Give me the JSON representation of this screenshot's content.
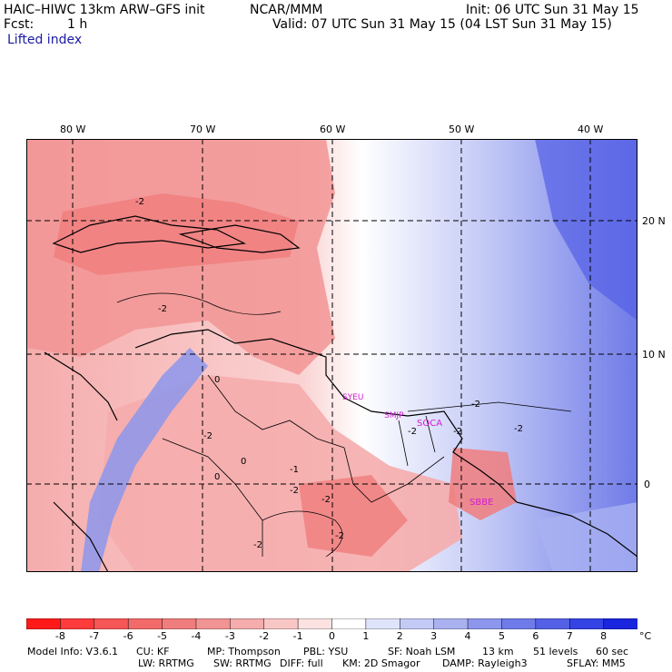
{
  "header": {
    "model_title": "HAIC–HIWC 13km ARW–GFS init",
    "org": "NCAR/MMM",
    "init": "Init: 06 UTC Sun 31 May 15",
    "fcst_label": "Fcst:",
    "fcst_value": "1 h",
    "valid": "Valid: 07 UTC Sun 31 May 15 (04 LST Sun 31 May 15)",
    "field": "Lifted index"
  },
  "axes": {
    "lon_labels": [
      "80 W",
      "70 W",
      "60 W",
      "50 W",
      "40 W"
    ],
    "lat_labels": [
      "20 N",
      "10 N",
      "0"
    ]
  },
  "stations": [
    "SYEU",
    "SMJP",
    "SOCA",
    "SBBE"
  ],
  "contour_labels": [
    "-2",
    "-2",
    "-2",
    "-2",
    "-2",
    "-2",
    "-2",
    "-2",
    "-2",
    "-2",
    "-2",
    "-1",
    "0",
    "0",
    "0"
  ],
  "colorbar": {
    "ticks": [
      "-8",
      "-7",
      "-6",
      "-5",
      "-4",
      "-3",
      "-2",
      "-1",
      "0",
      "1",
      "2",
      "3",
      "4",
      "5",
      "6",
      "7",
      "8"
    ],
    "unit": "°C",
    "colors": [
      "#ff1a1a",
      "#ff3b3b",
      "#f75656",
      "#f26a6a",
      "#f07d7d",
      "#f29494",
      "#f5acac",
      "#f9c6c6",
      "#fde2e2",
      "#ffffff",
      "#e0e4fb",
      "#c4caf6",
      "#a9b1f1",
      "#8c96ec",
      "#6f7be8",
      "#5460e6",
      "#3343e4",
      "#1a25dd"
    ]
  },
  "footer": {
    "line1": [
      "Model Info: V3.6.1",
      "CU: KF",
      "MP: Thompson",
      "PBL: YSU",
      "SF: Noah LSM",
      "13 km",
      "51 levels",
      "60 sec"
    ],
    "line2": [
      "LW: RRTMG",
      "SW: RRTMG",
      "DIFF: full",
      "KM: 2D Smagor",
      "DAMP: Rayleigh3",
      "SFLAY: MM5"
    ]
  }
}
